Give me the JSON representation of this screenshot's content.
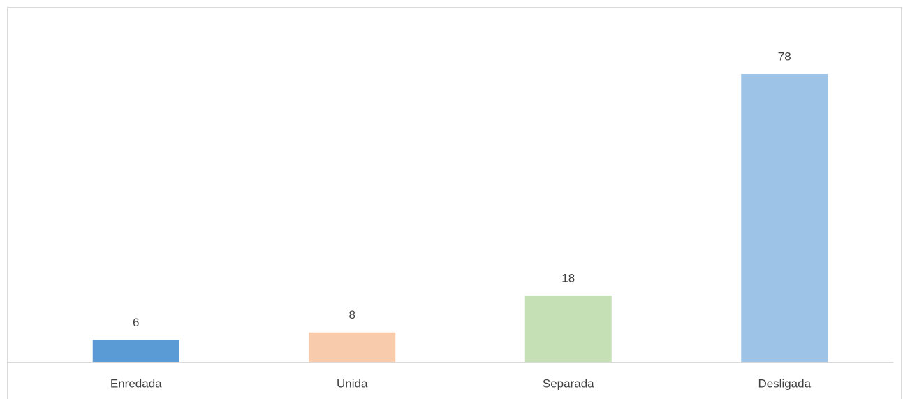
{
  "chart_data": {
    "type": "bar",
    "categories": [
      "Enredada",
      "Unida",
      "Separada",
      "Desligada"
    ],
    "values": [
      6,
      8,
      18,
      78
    ],
    "colors": [
      "#5b9bd5",
      "#f8cbad",
      "#c5e0b4",
      "#9dc3e6"
    ]
  }
}
